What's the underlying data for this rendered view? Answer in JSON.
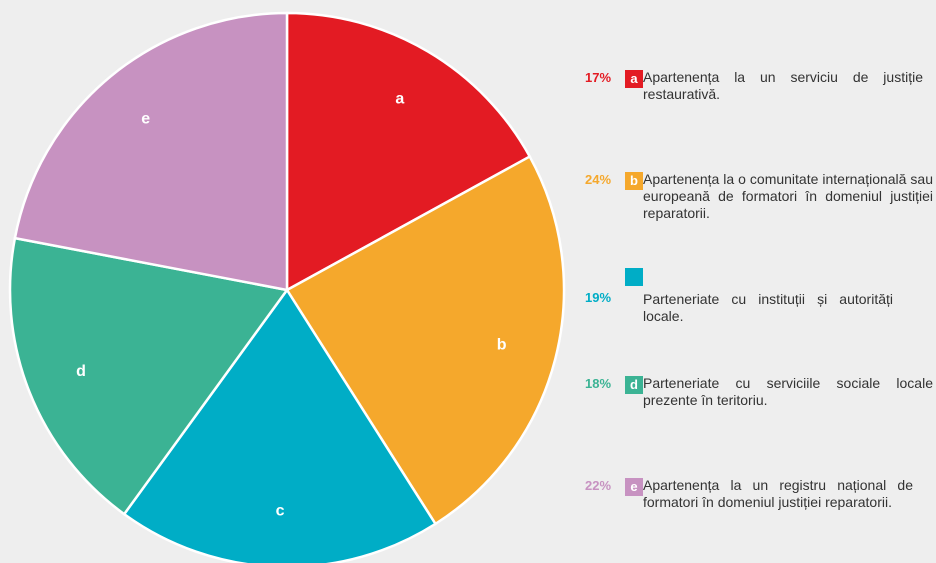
{
  "chart_data": {
    "type": "pie",
    "categories": [
      "a",
      "b",
      "c",
      "d",
      "e"
    ],
    "values": [
      17,
      24,
      19,
      18,
      22
    ],
    "value_labels": [
      "17%",
      "24%",
      "19%",
      "18%",
      "22%"
    ],
    "colors": [
      "#e31b23",
      "#f5a82c",
      "#00adc6",
      "#3bb394",
      "#c792c1"
    ],
    "descriptions": [
      "Apartenența la un serviciu de justiție restaurativă.",
      "Apartenența la o comunitate internațională sau europeană de formatori în domeniul justiției reparatorii.",
      "Parteneriate cu instituții și autorități locale.",
      "Parteneriate cu serviciile sociale locale prezente în teritoriu.",
      "Apartenența la un registru național de formatori în domeniul justiției reparatorii."
    ]
  }
}
